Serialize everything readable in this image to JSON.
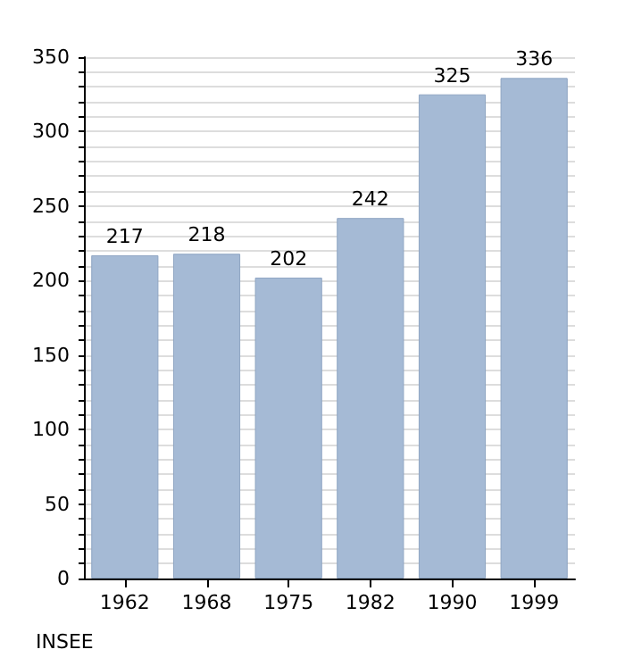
{
  "chart_data": {
    "type": "bar",
    "categories": [
      "1962",
      "1968",
      "1975",
      "1982",
      "1990",
      "1999"
    ],
    "values": [
      217,
      218,
      202,
      242,
      325,
      336
    ],
    "color": "#a5bad5",
    "data_labels": true,
    "ylim": [
      0,
      350
    ],
    "yticks": [
      0,
      {
        "value": 10,
        "label": null
      },
      {
        "value": 20,
        "label": null
      },
      {
        "value": 30,
        "label": null
      },
      {
        "value": 40,
        "label": null
      },
      50,
      {
        "value": 60,
        "label": null
      },
      {
        "value": 70,
        "label": null
      },
      {
        "value": 80,
        "label": null
      },
      {
        "value": 90,
        "label": null
      },
      100,
      {
        "value": 110,
        "label": null
      },
      {
        "value": 120,
        "label": null
      },
      {
        "value": 130,
        "label": null
      },
      {
        "value": 140,
        "label": null
      },
      150,
      {
        "value": 160,
        "label": null
      },
      {
        "value": 170,
        "label": null
      },
      {
        "value": 180,
        "label": null
      },
      {
        "value": 190,
        "label": null
      },
      200,
      {
        "value": 210,
        "label": null
      },
      {
        "value": 220,
        "label": null
      },
      {
        "value": 230,
        "label": null
      },
      {
        "value": 240,
        "label": null
      },
      250,
      {
        "value": 260,
        "label": null
      },
      {
        "value": 270,
        "label": null
      },
      {
        "value": 280,
        "label": null
      },
      {
        "value": 290,
        "label": null
      },
      300,
      {
        "value": 310,
        "label": null
      },
      {
        "value": 320,
        "label": null
      },
      {
        "value": 330,
        "label": null
      },
      {
        "value": 340,
        "label": null
      },
      350
    ],
    "grid": "y",
    "annotations": [
      "INSEE"
    ]
  }
}
